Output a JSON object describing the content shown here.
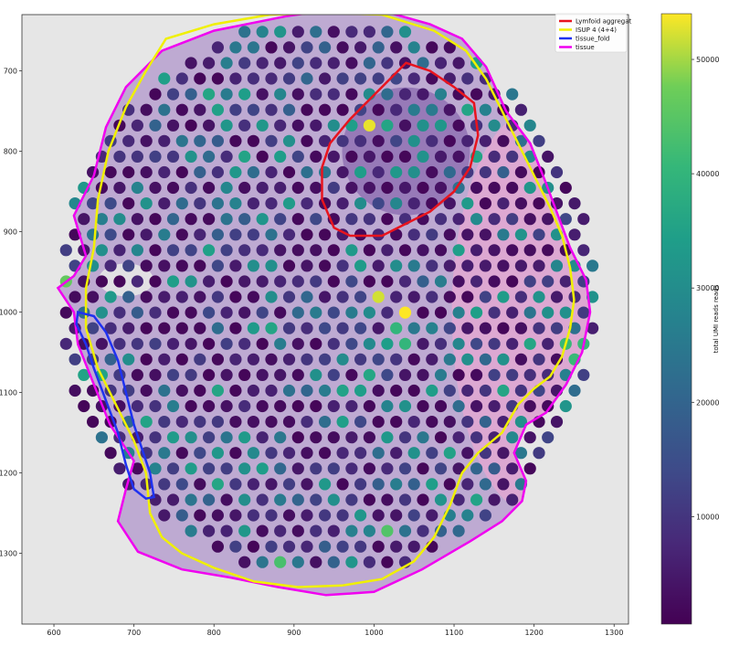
{
  "chart_data": {
    "type": "scatter",
    "title": "",
    "xlabel": "",
    "ylabel": "",
    "x_ticks": [
      600,
      700,
      800,
      900,
      1000,
      1100,
      1200,
      1300
    ],
    "y_ticks": [
      700,
      800,
      900,
      1000,
      1100,
      1200,
      1300
    ],
    "xlim": [
      560,
      1318
    ],
    "ylim": [
      1388,
      630
    ],
    "y_inverted": true,
    "grid": false,
    "legend_position": "top-right",
    "legend": [
      {
        "label": "Lymfoid aggregat",
        "color": "#e8141e"
      },
      {
        "label": "ISUP 4 (4+4)",
        "color": "#f0f000"
      },
      {
        "label": "tissue_fold",
        "color": "#1f32f0"
      },
      {
        "label": "tissue",
        "color": "#f000f0"
      }
    ],
    "colorbar": {
      "label": "total UMI reads reads",
      "colormap": "viridis",
      "range": [
        600,
        54000
      ],
      "ticks": [
        10000,
        20000,
        30000,
        40000,
        50000
      ]
    },
    "spot_grid": {
      "x_pitch": 22.3,
      "y_pitch": 19.4,
      "tissue_center": [
        942,
        980
      ],
      "tissue_radius_x": 338,
      "tissue_radius_y": 348
    },
    "annotations": {
      "tissue": [
        [
          735,
          675
        ],
        [
          800,
          650
        ],
        [
          890,
          632
        ],
        [
          960,
          622
        ],
        [
          1020,
          628
        ],
        [
          1070,
          642
        ],
        [
          1110,
          660
        ],
        [
          1140,
          695
        ],
        [
          1165,
          750
        ],
        [
          1195,
          790
        ],
        [
          1215,
          840
        ],
        [
          1230,
          880
        ],
        [
          1245,
          920
        ],
        [
          1265,
          960
        ],
        [
          1270,
          1000
        ],
        [
          1260,
          1050
        ],
        [
          1240,
          1090
        ],
        [
          1215,
          1125
        ],
        [
          1190,
          1140
        ],
        [
          1175,
          1175
        ],
        [
          1190,
          1210
        ],
        [
          1185,
          1235
        ],
        [
          1160,
          1260
        ],
        [
          1120,
          1285
        ],
        [
          1060,
          1320
        ],
        [
          1000,
          1348
        ],
        [
          940,
          1352
        ],
        [
          880,
          1342
        ],
        [
          820,
          1330
        ],
        [
          760,
          1320
        ],
        [
          705,
          1298
        ],
        [
          680,
          1260
        ],
        [
          690,
          1220
        ],
        [
          700,
          1185
        ],
        [
          670,
          1140
        ],
        [
          650,
          1090
        ],
        [
          630,
          1040
        ],
        [
          625,
          1000
        ],
        [
          605,
          970
        ],
        [
          625,
          955
        ],
        [
          640,
          930
        ],
        [
          625,
          880
        ],
        [
          650,
          830
        ],
        [
          665,
          770
        ],
        [
          690,
          720
        ]
      ],
      "lymfoid_aggregat": [
        [
          1040,
          690
        ],
        [
          1070,
          700
        ],
        [
          1100,
          720
        ],
        [
          1125,
          740
        ],
        [
          1130,
          780
        ],
        [
          1120,
          820
        ],
        [
          1100,
          850
        ],
        [
          1070,
          875
        ],
        [
          1040,
          890
        ],
        [
          1010,
          905
        ],
        [
          970,
          905
        ],
        [
          950,
          895
        ],
        [
          935,
          860
        ],
        [
          935,
          820
        ],
        [
          945,
          790
        ],
        [
          970,
          760
        ],
        [
          1000,
          730
        ],
        [
          1025,
          705
        ]
      ],
      "isup_4_4plus4": [
        [
          740,
          660
        ],
        [
          800,
          642
        ],
        [
          870,
          630
        ],
        [
          940,
          628
        ],
        [
          1010,
          630
        ],
        [
          1075,
          650
        ],
        [
          1115,
          675
        ],
        [
          1140,
          710
        ],
        [
          1160,
          750
        ],
        [
          1180,
          790
        ],
        [
          1200,
          830
        ],
        [
          1220,
          870
        ],
        [
          1235,
          905
        ],
        [
          1245,
          945
        ],
        [
          1250,
          985
        ],
        [
          1245,
          1020
        ],
        [
          1235,
          1055
        ],
        [
          1220,
          1080
        ],
        [
          1200,
          1095
        ],
        [
          1180,
          1115
        ],
        [
          1160,
          1150
        ],
        [
          1130,
          1175
        ],
        [
          1110,
          1200
        ],
        [
          1095,
          1240
        ],
        [
          1075,
          1280
        ],
        [
          1050,
          1310
        ],
        [
          1010,
          1332
        ],
        [
          960,
          1340
        ],
        [
          905,
          1342
        ],
        [
          850,
          1335
        ],
        [
          800,
          1318
        ],
        [
          760,
          1300
        ],
        [
          735,
          1280
        ],
        [
          720,
          1250
        ],
        [
          715,
          1200
        ],
        [
          700,
          1160
        ],
        [
          675,
          1110
        ],
        [
          655,
          1070
        ],
        [
          640,
          1020
        ],
        [
          640,
          970
        ],
        [
          650,
          920
        ],
        [
          655,
          860
        ],
        [
          668,
          800
        ],
        [
          690,
          745
        ],
        [
          715,
          700
        ]
      ],
      "tissue_fold": [
        [
          630,
          1000
        ],
        [
          650,
          1005
        ],
        [
          665,
          1025
        ],
        [
          680,
          1060
        ],
        [
          690,
          1100
        ],
        [
          700,
          1140
        ],
        [
          710,
          1170
        ],
        [
          720,
          1200
        ],
        [
          725,
          1230
        ],
        [
          715,
          1232
        ],
        [
          700,
          1220
        ],
        [
          690,
          1190
        ],
        [
          680,
          1150
        ],
        [
          665,
          1110
        ],
        [
          650,
          1070
        ],
        [
          640,
          1040
        ],
        [
          628,
          1015
        ]
      ]
    },
    "spot_value_model": {
      "base_range": [
        1500,
        14000
      ],
      "high_values": [
        {
          "x": 610,
          "y": 965,
          "value": 46000
        },
        {
          "x": 1000,
          "y": 772,
          "value": 53000
        },
        {
          "x": 1000,
          "y": 985,
          "value": 52000
        },
        {
          "x": 1040,
          "y": 1005,
          "value": 54000
        },
        {
          "x": 1015,
          "y": 1270,
          "value": 44000
        },
        {
          "x": 890,
          "y": 1310,
          "value": 43000
        },
        {
          "x": 1250,
          "y": 1050,
          "value": 41000
        },
        {
          "x": 1030,
          "y": 1030,
          "value": 40000
        }
      ]
    }
  }
}
